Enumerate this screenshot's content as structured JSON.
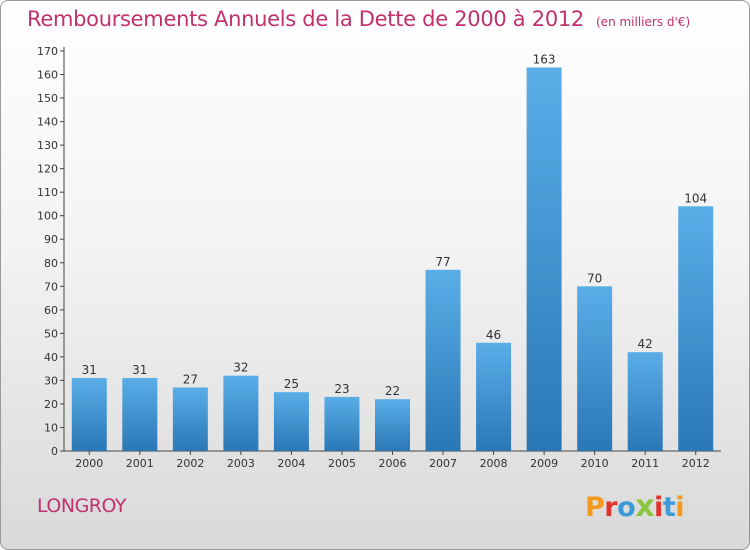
{
  "header": {
    "title": "Remboursements Annuels de la Dette de 2000 à 2012",
    "unit": "(en milliers d'€)"
  },
  "footer": {
    "town": "LONGROY",
    "logo": "Proxiti"
  },
  "colors": {
    "title": "#c0316e",
    "bar_top": "#5aaee8",
    "bar_bottom": "#2a77b5",
    "logo_letters": [
      "#f39a1d",
      "#e2342e",
      "#3b9ad8",
      "#8cc63f",
      "#e2342e",
      "#3b9ad8",
      "#f39a1d"
    ]
  },
  "chart_data": {
    "type": "bar",
    "categories": [
      "2000",
      "2001",
      "2002",
      "2003",
      "2004",
      "2005",
      "2006",
      "2007",
      "2008",
      "2009",
      "2010",
      "2011",
      "2012"
    ],
    "values": [
      31,
      31,
      27,
      32,
      25,
      23,
      22,
      77,
      46,
      163,
      70,
      42,
      104
    ],
    "title": "Remboursements Annuels de la Dette de 2000 à 2012",
    "ylim": [
      0,
      170
    ],
    "ytick_step": 10,
    "grid": false,
    "data_labels": true
  }
}
